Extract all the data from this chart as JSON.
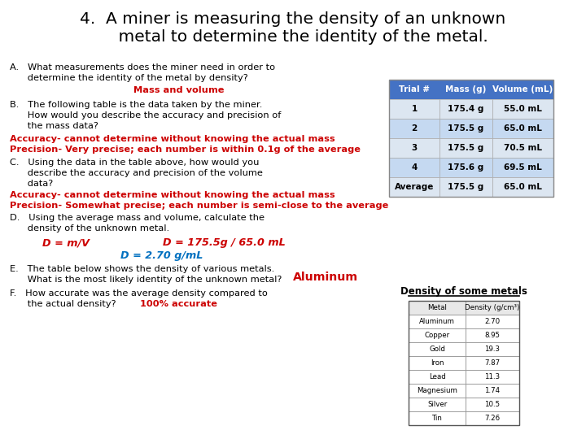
{
  "title_line1": "4.  A miner is measuring the density of an unknown",
  "title_line2": "    metal to determine the identity of the metal.",
  "bg_color": "#ffffff",
  "text_color": "#000000",
  "red_color": "#cc0000",
  "blue_color": "#0070c0",
  "section_A_line1": "A.   What measurements does the miner need in order to",
  "section_A_line2": "      determine the identity of the metal by density?",
  "section_A_red": "Mass and volume",
  "section_B_line1": "B.   The following table is the data taken by the miner.",
  "section_B_line2": "      How would you describe the accuracy and precision of",
  "section_B_line3": "      the mass data?",
  "section_B_red1": "Accuracy- cannot determine without knowing the actual mass",
  "section_B_red2": "Precision- Very precise; each number is within 0.1g of the average",
  "section_C_line1": "C.   Using the data in the table above, how would you",
  "section_C_line2": "      describe the accuracy and precision of the volume",
  "section_C_line3": "      data?",
  "section_C_red1": "Accuracy- cannot determine without knowing the actual mass",
  "section_C_red2": "Precision- Somewhat precise; each number is semi-close to the average",
  "section_D_line1": "D.   Using the average mass and volume, calculate the",
  "section_D_line2": "      density of the unknown metal.",
  "section_D_red1": "D = m/V",
  "section_D_red2": "D = 175.5g / 65.0 mL",
  "section_D_blue": "D = 2.70 g/mL",
  "section_E_line1": "E.   The table below shows the density of various metals.",
  "section_E_line2": "      What is the most likely identity of the unknown metal?",
  "section_E_red": "Aluminum",
  "section_F_line1": "F.   How accurate was the average density compared to",
  "section_F_line2": "      the actual density?",
  "section_F_red": "100% accurate",
  "table1_header": [
    "Trial #",
    "Mass (g)",
    "Volume (mL)"
  ],
  "table1_header_bg": "#4472c4",
  "table1_row_bg1": "#dce6f1",
  "table1_row_bg2": "#c5d9f1",
  "table1_data": [
    [
      "1",
      "175.4 g",
      "55.0 mL"
    ],
    [
      "2",
      "175.5 g",
      "65.0 mL"
    ],
    [
      "3",
      "175.5 g",
      "70.5 mL"
    ],
    [
      "4",
      "175.6 g",
      "69.5 mL"
    ],
    [
      "Average",
      "175.5 g",
      "65.0 mL"
    ]
  ],
  "table2_title": "Density of some metals",
  "table2_header": [
    "Metal",
    "Density (g/cm³)"
  ],
  "table2_data": [
    [
      "Aluminum",
      "2.70"
    ],
    [
      "Copper",
      "8.95"
    ],
    [
      "Gold",
      "19.3"
    ],
    [
      "Iron",
      "7.87"
    ],
    [
      "Lead",
      "11.3"
    ],
    [
      "Magnesium",
      "1.74"
    ],
    [
      "Silver",
      "10.5"
    ],
    [
      "Tin",
      "7.26"
    ]
  ]
}
